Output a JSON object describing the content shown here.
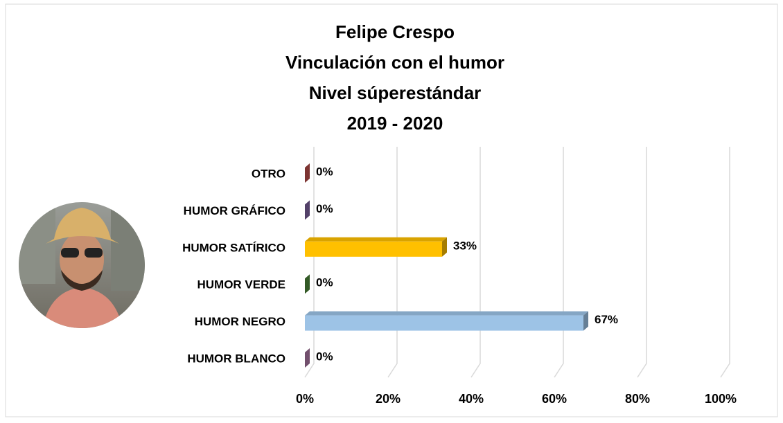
{
  "chart_data": {
    "type": "bar",
    "orientation": "horizontal",
    "title": [
      "Felipe Crespo",
      "Vinculación con el humor",
      "Nivel súperestándar",
      "2019 - 2020"
    ],
    "categories": [
      "OTRO",
      "HUMOR GRÁFICO",
      "HUMOR SATÍRICO",
      "HUMOR VERDE",
      "HUMOR NEGRO",
      "HUMOR BLANCO"
    ],
    "values": [
      0,
      0,
      33,
      0,
      67,
      0
    ],
    "value_labels": [
      "0%",
      "0%",
      "33%",
      "0%",
      "67%",
      "0%"
    ],
    "colors": [
      "#c0504d",
      "#8064a2",
      "#ffc000",
      "#4f8a3b",
      "#9dc3e6",
      "#b07aa8"
    ],
    "xlim": [
      0,
      100
    ],
    "xticks": [
      {
        "value": 0,
        "label": "0%"
      },
      {
        "value": 20,
        "label": "20%"
      },
      {
        "value": 40,
        "label": "40%"
      },
      {
        "value": 60,
        "label": "60%"
      },
      {
        "value": 80,
        "label": "80%"
      },
      {
        "value": 100,
        "label": "100%"
      }
    ],
    "grid": true
  }
}
